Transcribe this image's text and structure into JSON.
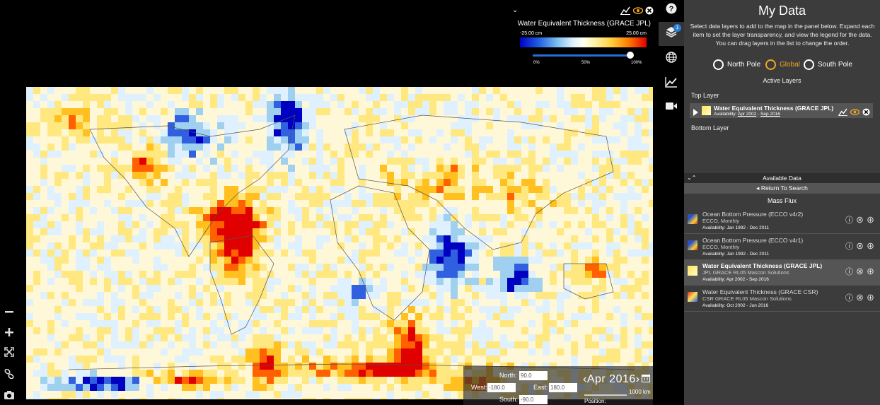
{
  "legend": {
    "title": "Water Equivalent Thickness (GRACE JPL)",
    "min": "-25.00 cm",
    "max": "25.00 cm",
    "pct0": "0%",
    "pct50": "50%",
    "pct100": "100%",
    "opacity_fraction": 1.0
  },
  "coords": {
    "north_label": "North:",
    "north_value": "90.0",
    "west_label": "West:",
    "west_value": "-180.0",
    "east_label": "East:",
    "east_value": "180.0",
    "south_label": "South:",
    "south_value": "-90.0"
  },
  "date_nav": "‹Apr 2016›",
  "scale_label": "1000 km",
  "position_label": "Position:",
  "layer_badge": "1",
  "panel": {
    "title": "My Data",
    "description": "Select data layers to add to the map in the panel below. Expand each item to set the layer transparency, and view the legend for the data. You can drag layers in the list to change the order.",
    "projections": [
      {
        "label": "North Pole",
        "active": false
      },
      {
        "label": "Global",
        "active": true
      },
      {
        "label": "South Pole",
        "active": false
      }
    ],
    "active_layers_label": "Active Layers",
    "top_layer_label": "Top Layer",
    "bottom_layer_label": "Bottom Layer",
    "active_layer": {
      "name": "Water Equivalent Thickness (GRACE JPL)",
      "avail_prefix": "Availability:",
      "avail_start": "Apr 2002",
      "avail_sep": " - ",
      "avail_end": "Sep 2016"
    },
    "available_data_label": "Available Data",
    "return_label": "Return To Search",
    "category": "Mass Flux",
    "datasets": [
      {
        "name": "Ocean Bottom Pressure (ECCO v4r2)",
        "sub": "ECCO, Monthly",
        "avail": "Availability: Jan 1992 - Dec 2011",
        "selected": false
      },
      {
        "name": "Ocean Bottom Pressure (ECCO v4r1)",
        "sub": "ECCO, Monthly",
        "avail": "Availability: Jan 1992 - Dec 2011",
        "selected": false
      },
      {
        "name": "Water Equivalent Thickness (GRACE JPL)",
        "sub": "JPL GRACE RL05 Mascon Solutions",
        "avail": "Availability: Apr 2002 - Sep 2016",
        "selected": true
      },
      {
        "name": "Water Equivalent Thickness (GRACE CSR)",
        "sub": "CSR GRACE RL05 Mascon Solutions",
        "avail": "Availability: Oct 2002 - Jun 2016",
        "selected": false
      }
    ]
  },
  "colors": {
    "accent": "#f0a820",
    "badge": "#2a7fd6",
    "panel_bg": "#3c3c3c"
  }
}
